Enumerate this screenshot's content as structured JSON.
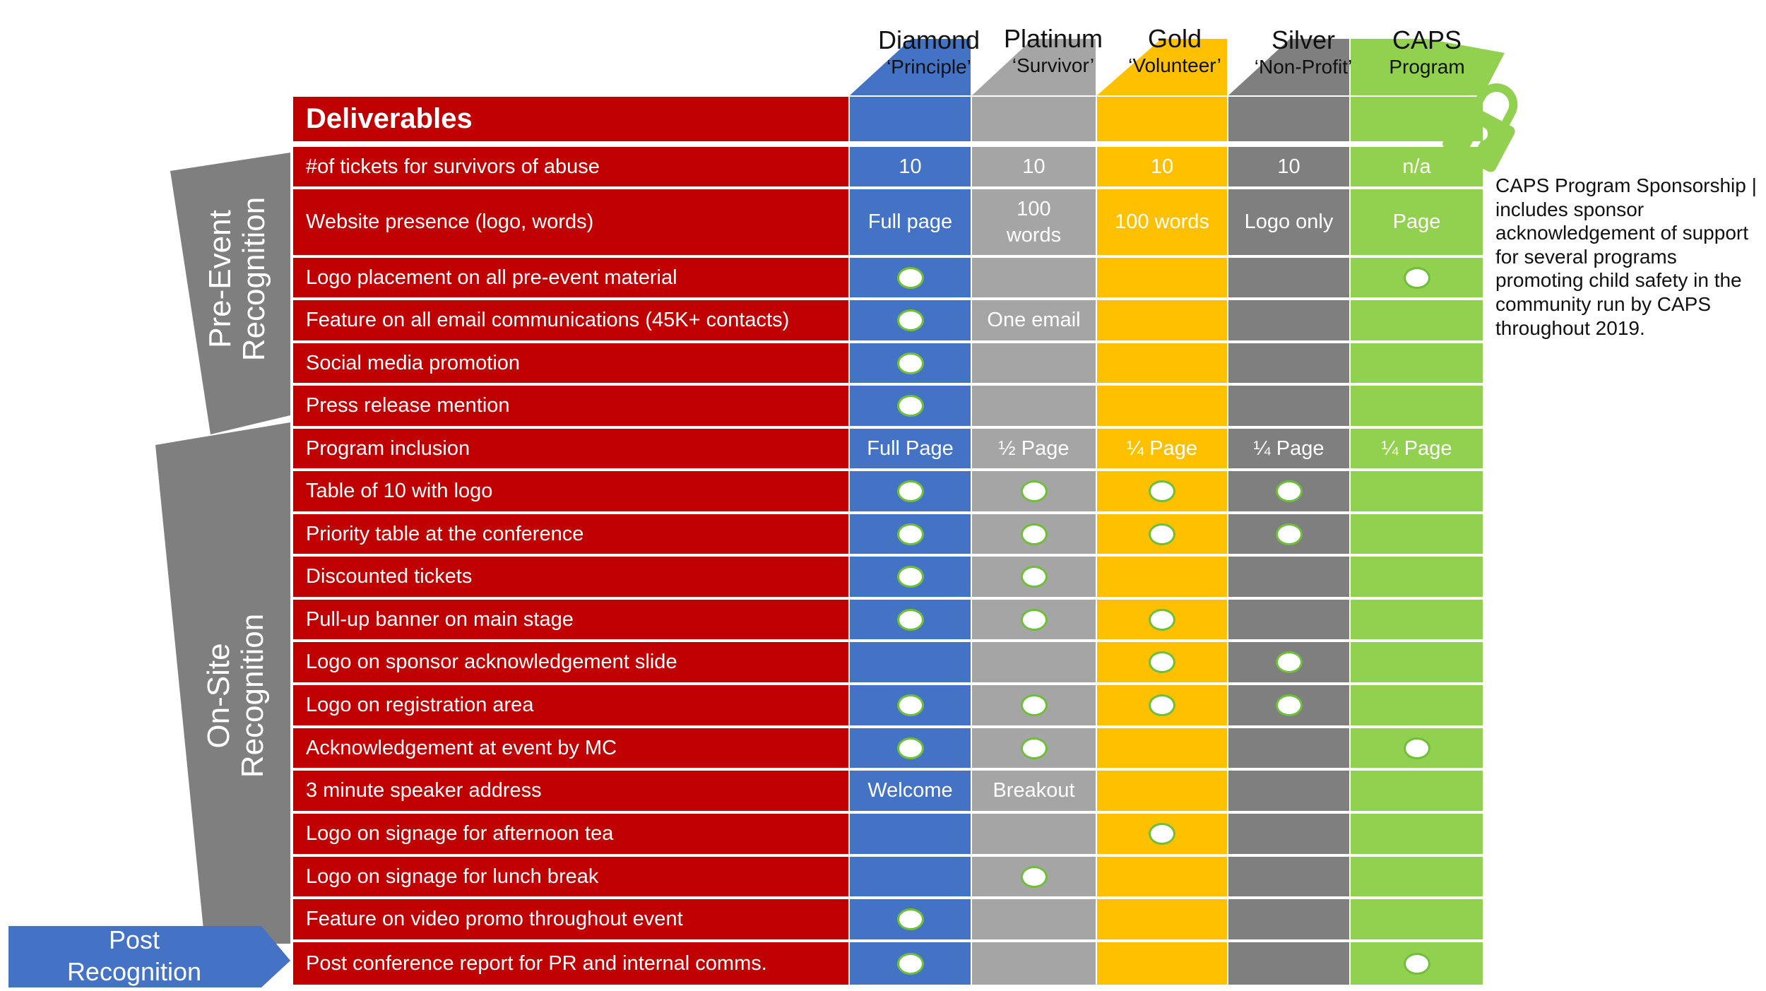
{
  "tiers": [
    {
      "name": "Diamond",
      "subtitle": "‘Principle’",
      "color": "#4472c4",
      "icon": "blue-tab"
    },
    {
      "name": "Platinum",
      "subtitle": "‘Survivor’",
      "color": "#a5a5a5",
      "icon": "gray-tab"
    },
    {
      "name": "Gold",
      "subtitle": "‘Volunteer’",
      "color": "#ffc000",
      "icon": "gold-tab"
    },
    {
      "name": "Silver",
      "subtitle": "‘Non-Profit’",
      "color": "#7f7f7f",
      "icon": "dark-gray-tab"
    },
    {
      "name": "CAPS",
      "subtitle": "Program",
      "color": "#92d050",
      "icon": "green-tab"
    }
  ],
  "header": {
    "title": "Deliverables"
  },
  "sections": {
    "pre_event": "Pre-Event Recognition",
    "on_site": "On-Site Recognition",
    "post": "Post Recognition"
  },
  "caps_note": "CAPS Program Sponsorship | includes sponsor acknowledgement of support for several programs promoting child safety in the community run by CAPS throughout 2019.",
  "lock_icon": "padlock-icon",
  "rows": [
    {
      "label": "#of tickets for survivors of abuse",
      "cells": [
        "10",
        "10",
        "10",
        "10",
        "n/a"
      ]
    },
    {
      "label": "Website presence (logo, words)",
      "cells": [
        "Full page",
        "100 words",
        "100 words",
        "Logo only",
        "Page"
      ]
    },
    {
      "label": "Logo placement on all pre-event material",
      "cells": [
        "●",
        "",
        "",
        "",
        "●"
      ]
    },
    {
      "label": "Feature on all email communications (45K+ contacts)",
      "cells": [
        "●",
        "One email",
        "",
        "",
        ""
      ]
    },
    {
      "label": "Social media promotion",
      "cells": [
        "●",
        "",
        "",
        "",
        ""
      ]
    },
    {
      "label": "Press release mention",
      "cells": [
        "●",
        "",
        "",
        "",
        ""
      ]
    },
    {
      "label": "Program inclusion",
      "cells": [
        "Full Page",
        "½ Page",
        "¼ Page",
        "¼ Page",
        "¼ Page"
      ]
    },
    {
      "label": "Table of 10 with logo",
      "cells": [
        "●",
        "●",
        "●",
        "●",
        ""
      ]
    },
    {
      "label": "Priority table at the conference",
      "cells": [
        "●",
        "●",
        "●",
        "●",
        ""
      ]
    },
    {
      "label": "Discounted tickets",
      "cells": [
        "●",
        "●",
        "",
        "",
        ""
      ]
    },
    {
      "label": "Pull-up banner on main stage",
      "cells": [
        "●",
        "●",
        "●",
        "",
        ""
      ]
    },
    {
      "label": "Logo on sponsor acknowledgement slide",
      "cells": [
        "",
        "",
        "●",
        "●",
        ""
      ]
    },
    {
      "label": "Logo on registration area",
      "cells": [
        "●",
        "●",
        "●",
        "●",
        ""
      ]
    },
    {
      "label": "Acknowledgement at event by MC",
      "cells": [
        "●",
        "●",
        "",
        "",
        "●"
      ]
    },
    {
      "label": "3 minute speaker address",
      "cells": [
        "Welcome",
        "Breakout",
        "",
        "",
        ""
      ]
    },
    {
      "label": "Logo on signage for afternoon tea",
      "cells": [
        "",
        "",
        "●",
        "",
        ""
      ]
    },
    {
      "label": "Logo on signage for lunch break",
      "cells": [
        "",
        "●",
        "",
        "",
        ""
      ]
    },
    {
      "label": "Feature on video promo throughout event",
      "cells": [
        "●",
        "",
        "",
        "",
        ""
      ]
    },
    {
      "label": "Post conference report for PR and internal comms.",
      "cells": [
        "●",
        "",
        "",
        "",
        "●"
      ]
    }
  ]
}
